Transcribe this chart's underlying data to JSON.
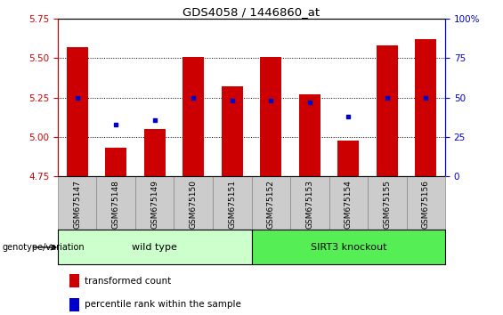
{
  "title": "GDS4058 / 1446860_at",
  "samples": [
    "GSM675147",
    "GSM675148",
    "GSM675149",
    "GSM675150",
    "GSM675151",
    "GSM675152",
    "GSM675153",
    "GSM675154",
    "GSM675155",
    "GSM675156"
  ],
  "transformed_count": [
    5.57,
    4.93,
    5.05,
    5.51,
    5.32,
    5.51,
    5.27,
    4.98,
    5.58,
    5.62
  ],
  "percentile_rank": [
    50,
    33,
    36,
    50,
    48,
    48,
    47,
    38,
    50,
    50
  ],
  "ylim_left": [
    4.75,
    5.75
  ],
  "ylim_right": [
    0,
    100
  ],
  "yticks_left": [
    4.75,
    5.0,
    5.25,
    5.5,
    5.75
  ],
  "yticks_right": [
    0,
    25,
    50,
    75,
    100
  ],
  "bar_color": "#cc0000",
  "dot_color": "#0000cc",
  "group1_label": "wild type",
  "group2_label": "SIRT3 knockout",
  "group1_color": "#ccffcc",
  "group2_color": "#55ee55",
  "group1_indices": [
    0,
    1,
    2,
    3,
    4
  ],
  "group2_indices": [
    5,
    6,
    7,
    8,
    9
  ],
  "legend1": "transformed count",
  "legend2": "percentile rank within the sample",
  "genotype_label": "genotype/variation",
  "bar_width": 0.55,
  "grid_color": "black",
  "bg_color": "white",
  "plot_bg": "white",
  "tick_cell_color": "#cccccc",
  "tick_cell_border": "#888888"
}
